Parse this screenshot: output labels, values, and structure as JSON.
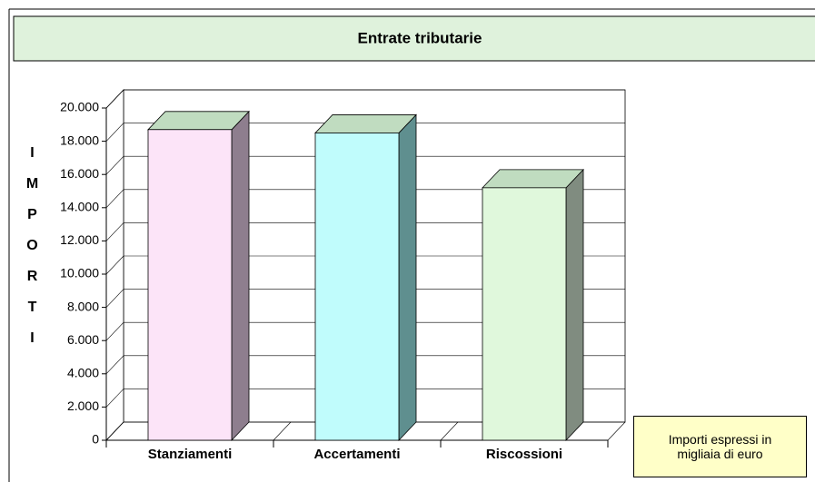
{
  "chart_data": {
    "type": "bar3d",
    "title": "Entrate tributarie",
    "y_axis_label": "IMPORTI",
    "annotation": "Importi espressi in migliaia di euro",
    "categories": [
      "Stanziamenti",
      "Accertamenti",
      "Riscossioni"
    ],
    "values": [
      18700,
      18500,
      15200
    ],
    "colors": [
      "#fce4f8",
      "#c0fcfc",
      "#e0f8dc"
    ],
    "side_colors": [
      "#8e7e8e",
      "#5f8f8f",
      "#808c80"
    ],
    "top_color": "#c0dcc0",
    "ylim": [
      0,
      20000
    ],
    "yticks": [
      0,
      {
        "value": 2000,
        "label": "2.000"
      },
      {
        "value": 4000,
        "label": "4.000"
      },
      {
        "value": 6000,
        "label": "6.000"
      },
      {
        "value": 8000,
        "label": "8.000"
      },
      {
        "value": 10000,
        "label": "10.000"
      },
      {
        "value": 12000,
        "label": "12.000"
      },
      {
        "value": 14000,
        "label": "14.000"
      },
      {
        "value": 16000,
        "label": "16.000"
      },
      {
        "value": 18000,
        "label": "18.000"
      },
      {
        "value": 20000,
        "label": "20.000"
      }
    ],
    "grid": true
  }
}
